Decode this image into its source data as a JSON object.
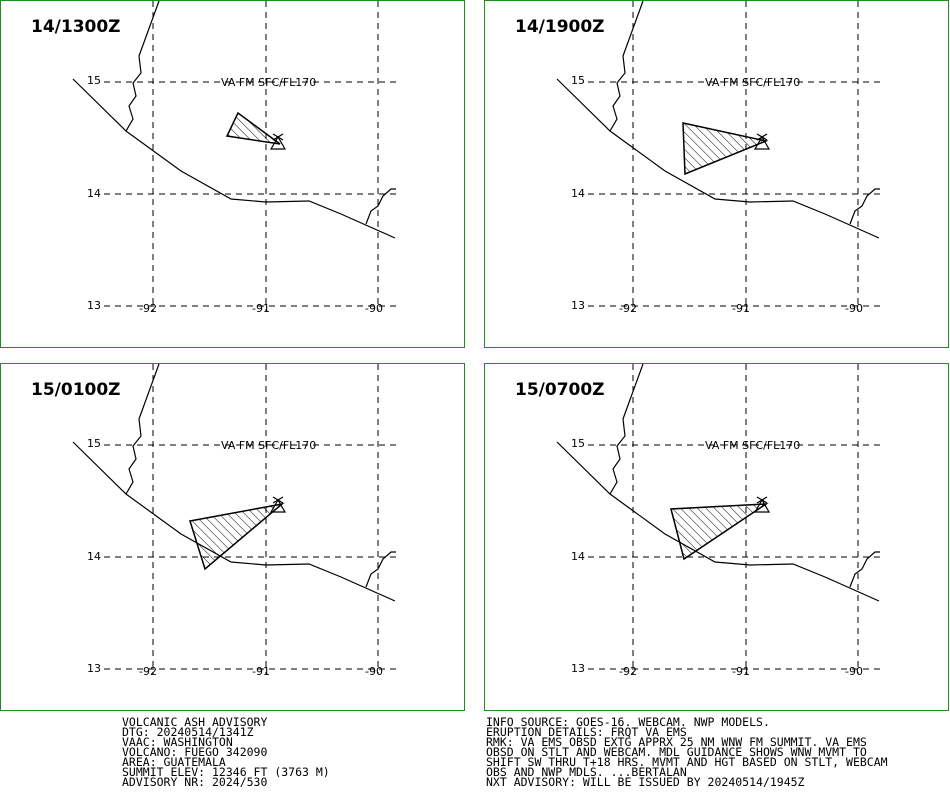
{
  "panels": [
    {
      "time": "14/1300Z",
      "va_label": "VA FM SFC/FL170"
    },
    {
      "time": "14/1900Z",
      "va_label": "VA FM SFC/FL170"
    },
    {
      "time": "15/0100Z",
      "va_label": "VA FM SFC/FL170"
    },
    {
      "time": "15/0700Z",
      "va_label": "VA FM SFC/FL170"
    }
  ],
  "lat_labels": [
    "15",
    "14",
    "13"
  ],
  "lon_labels": [
    "-92",
    "-91",
    "-90"
  ],
  "left_text": [
    "VOLCANIC ASH ADVISORY",
    "DTG: 20240514/1341Z",
    "VAAC: WASHINGTON",
    "VOLCANO: FUEGO 342090",
    "AREA: GUATEMALA",
    "SUMMIT ELEV: 12346 FT (3763 M)",
    "ADVISORY NR: 2024/530"
  ],
  "right_text": [
    "INFO SOURCE: GOES-16. WEBCAM. NWP MODELS.",
    "ERUPTION DETAILS: FRQT VA EMS",
    "RMK: VA EMS OBSD EXTG APPRX 25 NM WNW FM SUMMIT. VA EMS",
    "OBSD ON STLT AND WEBCAM. MDL GUIDANCE SHOWS WNW MVMT TO",
    "SHIFT SW THRU T+18 HRS. MVMT AND HGT BASED ON STLT, WEBCAM",
    "OBS AND NWP MDLS. ...BERTALAN",
    "NXT ADVISORY: WILL BE ISSUED BY 20240514/1945Z"
  ]
}
